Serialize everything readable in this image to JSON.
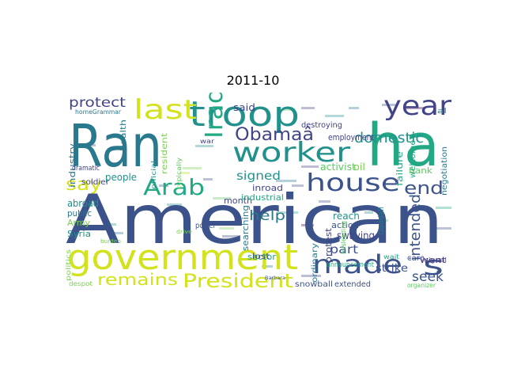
{
  "title": "2011-10",
  "palette": {
    "yellow": "#d2e21b",
    "yellow_green": "#b5de2b",
    "lime": "#7ad151",
    "green": "#5ec962",
    "sea": "#22a884",
    "teal": "#21918c",
    "blue": "#2a788e",
    "navy": "#3b528b",
    "indigo": "#414487",
    "purple": "#440154",
    "violet": "#482878"
  },
  "words": [
    {
      "text": "American",
      "color": "navy"
    },
    {
      "text": "Ran",
      "color": "blue"
    },
    {
      "text": "ha",
      "color": "sea"
    },
    {
      "text": "government",
      "color": "yellow"
    },
    {
      "text": "troop",
      "color": "teal"
    },
    {
      "text": "year",
      "color": "indigo"
    },
    {
      "text": "worker",
      "color": "teal"
    },
    {
      "text": "house",
      "color": "navy"
    },
    {
      "text": "made",
      "color": "navy"
    },
    {
      "text": "last",
      "color": "yellow"
    },
    {
      "text": "Iraqi",
      "color": "sea"
    },
    {
      "text": "Arab",
      "color": "sea"
    },
    {
      "text": "Obamaâ",
      "color": "indigo"
    },
    {
      "text": "s",
      "color": "navy"
    },
    {
      "text": "President",
      "color": "yellow"
    },
    {
      "text": "remains",
      "color": "yellow"
    },
    {
      "text": "protect",
      "color": "indigo"
    },
    {
      "text": "say",
      "color": "yellow"
    },
    {
      "text": "end",
      "color": "navy"
    },
    {
      "text": "domestic",
      "color": "teal"
    },
    {
      "text": "intended",
      "color": "navy"
    },
    {
      "text": "seek",
      "color": "navy"
    },
    {
      "text": "help",
      "color": "blue"
    },
    {
      "text": "signed",
      "color": "teal"
    },
    {
      "text": "part",
      "color": "navy"
    },
    {
      "text": "swaying",
      "color": "indigo"
    },
    {
      "text": "strike",
      "color": "navy"
    },
    {
      "text": "went",
      "color": "violet"
    },
    {
      "text": "employment",
      "color": "indigo"
    },
    {
      "text": "destroying",
      "color": "indigo"
    },
    {
      "text": "said",
      "color": "indigo"
    },
    {
      "text": "month",
      "color": "indigo"
    },
    {
      "text": "inroad",
      "color": "indigo"
    },
    {
      "text": "industrial",
      "color": "sea"
    },
    {
      "text": "activist",
      "color": "green"
    },
    {
      "text": "oil",
      "color": "lime"
    },
    {
      "text": "bank",
      "color": "green"
    },
    {
      "text": "people",
      "color": "teal"
    },
    {
      "text": "abroad",
      "color": "teal"
    },
    {
      "text": "public",
      "color": "blue"
    },
    {
      "text": "Army",
      "color": "lime"
    },
    {
      "text": "Syria",
      "color": "teal"
    },
    {
      "text": "industry",
      "color": "blue"
    },
    {
      "text": "health",
      "color": "blue"
    },
    {
      "text": "resident",
      "color": "lime"
    },
    {
      "text": "reach",
      "color": "teal"
    },
    {
      "text": "action",
      "color": "navy"
    },
    {
      "text": "protest",
      "color": "indigo"
    },
    {
      "text": "searching",
      "color": "blue"
    },
    {
      "text": "sector",
      "color": "sea"
    },
    {
      "text": "announcement",
      "color": "sea"
    },
    {
      "text": "snowball",
      "color": "navy"
    },
    {
      "text": "extended",
      "color": "navy"
    },
    {
      "text": "ordinary",
      "color": "blue"
    },
    {
      "text": "failure",
      "color": "sea"
    },
    {
      "text": "welcome",
      "color": "sea"
    },
    {
      "text": "negotiation",
      "color": "blue"
    },
    {
      "text": "soldier",
      "color": "indigo"
    },
    {
      "text": "dramatic",
      "color": "indigo"
    },
    {
      "text": "Grammar",
      "color": "blue"
    },
    {
      "text": "home",
      "color": "blue"
    },
    {
      "text": "politics",
      "color": "lime"
    },
    {
      "text": "despot",
      "color": "lime"
    },
    {
      "text": "official",
      "color": "teal"
    },
    {
      "text": "typically",
      "color": "green"
    },
    {
      "text": "power",
      "color": "navy"
    },
    {
      "text": "lost",
      "color": "indigo"
    },
    {
      "text": "care",
      "color": "navy"
    },
    {
      "text": "organizer",
      "color": "green"
    },
    {
      "text": "signal",
      "color": "navy"
    },
    {
      "text": "wait",
      "color": "sea"
    },
    {
      "text": "misleading",
      "color": "green"
    },
    {
      "text": "Qaddafi",
      "color": "blue"
    },
    {
      "text": "al",
      "color": "blue"
    },
    {
      "text": "war",
      "color": "indigo"
    },
    {
      "text": "Barbara",
      "color": "navy"
    },
    {
      "text": "drive",
      "color": "lime"
    },
    {
      "text": "burden",
      "color": "lime"
    }
  ]
}
